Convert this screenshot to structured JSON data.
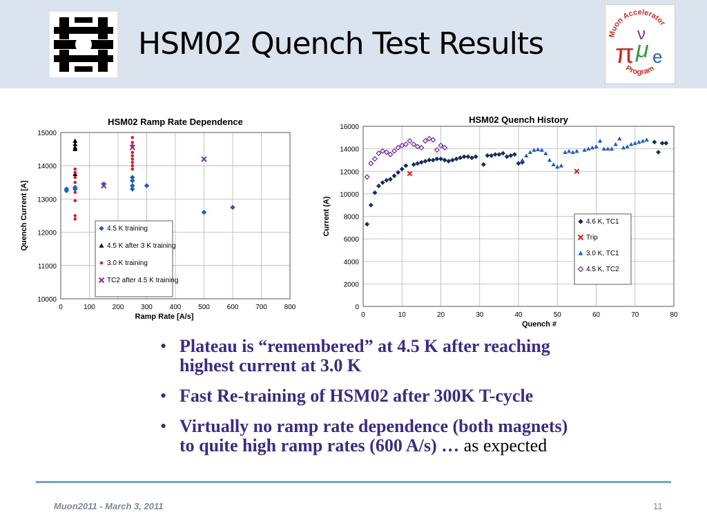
{
  "slide": {
    "title": "HSM02 Quench Test Results",
    "footer_left": "Muon2011  -  March 3, 2011",
    "page_number": "11",
    "logos": [
      "fermilab-logo",
      "muon-accelerator-program-logo"
    ],
    "map_logo_text": {
      "top": "Muon Accelerator",
      "bottom": "Program"
    }
  },
  "bullets": [
    {
      "lines": [
        "Plateau is “remembered” at 4.5 K after reaching",
        "highest current at 3.0 K"
      ],
      "tail": ""
    },
    {
      "lines": [
        "Fast Re-training of HSM02 after 300K T-cycle"
      ],
      "tail": ""
    },
    {
      "lines": [
        "Virtually no ramp rate dependence (both magnets)",
        "to quite high ramp rates (600 A/s)  …"
      ],
      "tail": " as expected"
    }
  ],
  "colors": {
    "header_bg": "#dbe4ee",
    "bullet_text": "#3b2c82",
    "rule": "#6aa6cc",
    "footer_text": "#7a8a99"
  },
  "chart_data": [
    {
      "type": "scatter",
      "title": "HSM02 Ramp Rate Dependence",
      "xlabel": "Ramp Rate [A/s]",
      "ylabel": "Quench Current [A]",
      "xlim": [
        0,
        800
      ],
      "ylim": [
        10000,
        15000
      ],
      "xticks": [
        0,
        100,
        200,
        300,
        400,
        500,
        600,
        700,
        800
      ],
      "yticks": [
        10000,
        11000,
        12000,
        13000,
        14000,
        15000
      ],
      "grid": true,
      "legend": "bottom-left",
      "series": [
        {
          "name": "4.5 K training",
          "marker": "diamond",
          "color": "#1f5fbf",
          "points": [
            [
              20,
              13250
            ],
            [
              20,
              13300
            ],
            [
              50,
              13300
            ],
            [
              50,
              13350
            ],
            [
              150,
              13450
            ],
            [
              250,
              13300
            ],
            [
              250,
              13400
            ],
            [
              250,
              13650
            ],
            [
              250,
              13550
            ],
            [
              300,
              13400
            ],
            [
              500,
              12600
            ],
            [
              600,
              12750
            ]
          ]
        },
        {
          "name": "4.5 K after 3 K training",
          "marker": "triangle",
          "color": "#000000",
          "points": [
            [
              50,
              14500
            ],
            [
              50,
              14650
            ],
            [
              50,
              14750
            ],
            [
              50,
              13750
            ],
            [
              50,
              14550
            ]
          ]
        },
        {
          "name": "3.0 K training",
          "marker": "dot",
          "color": "#d42020",
          "points": [
            [
              50,
              12400
            ],
            [
              50,
              12500
            ],
            [
              50,
              12950
            ],
            [
              50,
              13200
            ],
            [
              50,
              13500
            ],
            [
              50,
              13650
            ],
            [
              50,
              13800
            ],
            [
              50,
              13900
            ],
            [
              250,
              13900
            ],
            [
              250,
              14000
            ],
            [
              250,
              14100
            ],
            [
              250,
              14200
            ],
            [
              250,
              14300
            ],
            [
              250,
              14400
            ],
            [
              250,
              14600
            ],
            [
              250,
              14700
            ],
            [
              250,
              14850
            ]
          ]
        },
        {
          "name": "TC2 after 4.5 K training",
          "marker": "x",
          "color": "#7a2f9e",
          "points": [
            [
              150,
              13400
            ],
            [
              250,
              14550
            ],
            [
              500,
              14200
            ]
          ]
        }
      ]
    },
    {
      "type": "scatter",
      "title": "HSM02 Quench History",
      "xlabel": "Quench #",
      "ylabel": "Current (A)",
      "xlim": [
        0,
        80
      ],
      "ylim": [
        0,
        16000
      ],
      "xticks": [
        0,
        10,
        20,
        30,
        40,
        50,
        60,
        70,
        80
      ],
      "yticks": [
        0,
        2000,
        4000,
        6000,
        8000,
        10000,
        12000,
        14000,
        16000
      ],
      "grid": true,
      "legend": "right",
      "series": [
        {
          "name": "4.6 K, TC1",
          "marker": "diamond",
          "color": "#12305e",
          "points": [
            [
              1,
              7300
            ],
            [
              2,
              9000
            ],
            [
              3,
              10100
            ],
            [
              4,
              10700
            ],
            [
              5,
              11000
            ],
            [
              6,
              11200
            ],
            [
              7,
              11300
            ],
            [
              8,
              11600
            ],
            [
              9,
              11900
            ],
            [
              10,
              12200
            ],
            [
              11,
              12500
            ],
            [
              13,
              12600
            ],
            [
              14,
              12700
            ],
            [
              15,
              12800
            ],
            [
              16,
              12900
            ],
            [
              17,
              13000
            ],
            [
              18,
              13000
            ],
            [
              19,
              13100
            ],
            [
              20,
              13100
            ],
            [
              21,
              13000
            ],
            [
              22,
              12900
            ],
            [
              23,
              13000
            ],
            [
              24,
              13100
            ],
            [
              25,
              13200
            ],
            [
              26,
              13300
            ],
            [
              27,
              13300
            ],
            [
              28,
              13200
            ],
            [
              29,
              13300
            ],
            [
              31,
              12600
            ],
            [
              32,
              13400
            ],
            [
              33,
              13400
            ],
            [
              34,
              13500
            ],
            [
              35,
              13500
            ],
            [
              36,
              13600
            ],
            [
              37,
              13300
            ],
            [
              38,
              13400
            ],
            [
              39,
              13500
            ],
            [
              40,
              12700
            ],
            [
              41,
              12800
            ],
            [
              75,
              14600
            ],
            [
              76,
              13700
            ],
            [
              77,
              14500
            ],
            [
              78,
              14500
            ]
          ]
        },
        {
          "name": "Trip",
          "marker": "x",
          "color": "#d42020",
          "points": [
            [
              12,
              11800
            ],
            [
              55,
              12000
            ]
          ]
        },
        {
          "name": "3.0 K, TC1",
          "marker": "triangle",
          "color": "#1f5fbf",
          "points": [
            [
              41,
              13000
            ],
            [
              42,
              13400
            ],
            [
              43,
              13700
            ],
            [
              44,
              13900
            ],
            [
              45,
              13950
            ],
            [
              46,
              13900
            ],
            [
              47,
              13600
            ],
            [
              48,
              13000
            ],
            [
              49,
              12600
            ],
            [
              50,
              12400
            ],
            [
              51,
              12500
            ],
            [
              52,
              13700
            ],
            [
              53,
              13800
            ],
            [
              54,
              13700
            ],
            [
              55,
              13800
            ],
            [
              57,
              13900
            ],
            [
              58,
              14000
            ],
            [
              59,
              14100
            ],
            [
              60,
              14200
            ],
            [
              61,
              14700
            ],
            [
              62,
              14000
            ],
            [
              63,
              14000
            ],
            [
              64,
              14000
            ],
            [
              65,
              14400
            ],
            [
              66,
              14900
            ],
            [
              67,
              14100
            ],
            [
              68,
              14200
            ],
            [
              69,
              14400
            ],
            [
              70,
              14500
            ],
            [
              71,
              14600
            ],
            [
              72,
              14700
            ],
            [
              73,
              14800
            ]
          ]
        },
        {
          "name": "4.5 K, TC2",
          "marker": "diamond-open",
          "color": "#7a2f9e",
          "points": [
            [
              1,
              11500
            ],
            [
              2,
              12700
            ],
            [
              3,
              13100
            ],
            [
              4,
              13600
            ],
            [
              5,
              13800
            ],
            [
              6,
              13700
            ],
            [
              7,
              13500
            ],
            [
              8,
              13800
            ],
            [
              9,
              14100
            ],
            [
              10,
              14300
            ],
            [
              11,
              14400
            ],
            [
              12,
              14700
            ],
            [
              13,
              14400
            ],
            [
              14,
              14200
            ],
            [
              15,
              14100
            ],
            [
              16,
              14700
            ],
            [
              17,
              14900
            ],
            [
              18,
              14800
            ],
            [
              19,
              13900
            ],
            [
              20,
              14300
            ],
            [
              21,
              14100
            ]
          ]
        }
      ]
    }
  ]
}
